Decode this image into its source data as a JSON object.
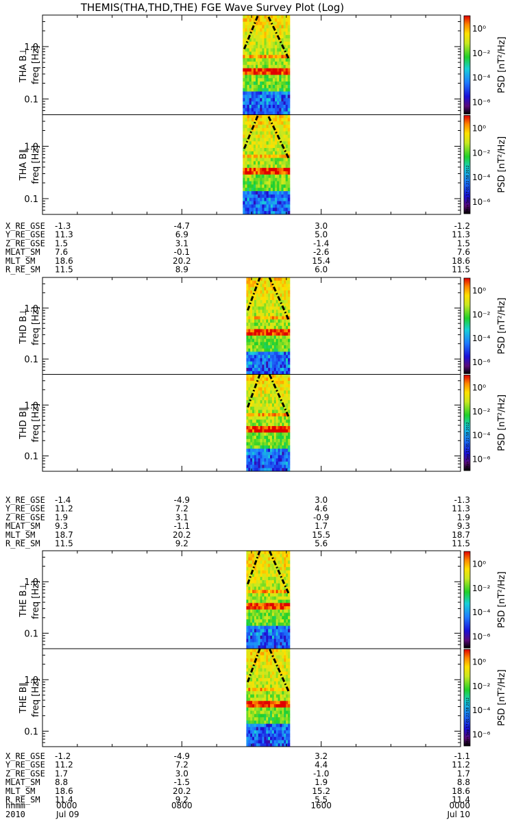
{
  "title": "THEMIS(THA,THD,THE) FGE Wave Survey Plot (Log)",
  "stamp": "Mon Sep 17 01:22:58 2012",
  "colorbar": {
    "label": "PSD [nT²/Hz]",
    "tick_labels": [
      "10⁰",
      "10⁻²",
      "10⁻⁴",
      "10⁻⁶"
    ]
  },
  "freq_axis_label": "freq [Hz]",
  "freq_tick_labels": [
    "1.0",
    "0.1"
  ],
  "time_axis": {
    "row_labels": [
      "hhmm",
      "2010"
    ],
    "ticks": [
      {
        "hhmm": "0000",
        "date": "Jul 09"
      },
      {
        "hhmm": "0800",
        "date": ""
      },
      {
        "hhmm": "1600",
        "date": ""
      },
      {
        "hhmm": "0000",
        "date": "Jul 10"
      }
    ]
  },
  "chart_data": [
    {
      "type": "heatmap",
      "probe": "THA",
      "panels": [
        "THA B⊥",
        "THA B∥"
      ],
      "x_range_hours": [
        0,
        24
      ],
      "data_interval_hours": [
        11.5,
        14.2
      ],
      "freq_range_hz": [
        0.05,
        4.0
      ],
      "color_range_psd": [
        1e-07,
        10
      ],
      "scale": "log",
      "ephemeris": {
        "rows": [
          "X_RE_GSE",
          "Y_RE_GSE",
          "Z_RE_GSE",
          "MLAT_SM",
          "MLT_SM",
          "R_RE_SM"
        ],
        "values": [
          [
            "-1.3",
            "-4.7",
            "3.0",
            "-1.2"
          ],
          [
            "11.3",
            "6.9",
            "5.0",
            "11.3"
          ],
          [
            "1.5",
            "3.1",
            "-1.4",
            "1.5"
          ],
          [
            "7.6",
            "-0.1",
            "-2.6",
            "7.6"
          ],
          [
            "18.6",
            "20.2",
            "15.4",
            "18.6"
          ],
          [
            "11.5",
            "8.9",
            "6.0",
            "11.5"
          ]
        ]
      }
    },
    {
      "type": "heatmap",
      "probe": "THD",
      "panels": [
        "THD B⊥",
        "THD B∥"
      ],
      "x_range_hours": [
        0,
        24
      ],
      "data_interval_hours": [
        11.7,
        14.2
      ],
      "freq_range_hz": [
        0.05,
        4.0
      ],
      "color_range_psd": [
        1e-07,
        10
      ],
      "scale": "log",
      "ephemeris": {
        "rows": [
          "X_RE_GSE",
          "Y_RE_GSE",
          "Z_RE_GSE",
          "MLAT_SM",
          "MLT_SM",
          "R_RE_SM"
        ],
        "values": [
          [
            "-1.4",
            "-4.9",
            "3.0",
            "-1.3"
          ],
          [
            "11.2",
            "7.2",
            "4.6",
            "11.3"
          ],
          [
            "1.9",
            "3.1",
            "-0.9",
            "1.9"
          ],
          [
            "9.3",
            "-1.1",
            "1.7",
            "9.3"
          ],
          [
            "18.7",
            "20.2",
            "15.5",
            "18.7"
          ],
          [
            "11.5",
            "9.2",
            "5.6",
            "11.5"
          ]
        ]
      }
    },
    {
      "type": "heatmap",
      "probe": "THE",
      "panels": [
        "THE B⊥",
        "THE B∥"
      ],
      "x_range_hours": [
        0,
        24
      ],
      "data_interval_hours": [
        11.7,
        14.2
      ],
      "freq_range_hz": [
        0.05,
        4.0
      ],
      "color_range_psd": [
        1e-07,
        10
      ],
      "scale": "log",
      "ephemeris": {
        "rows": [
          "X_RE_GSE",
          "Y_RE_GSE",
          "Z_RE_GSE",
          "MLAT_SM",
          "MLT_SM",
          "R_RE_SM"
        ],
        "values": [
          [
            "-1.2",
            "-4.9",
            "3.2",
            "-1.1"
          ],
          [
            "11.2",
            "7.2",
            "4.4",
            "11.2"
          ],
          [
            "1.7",
            "3.0",
            "-1.0",
            "1.7"
          ],
          [
            "8.8",
            "-1.5",
            "1.9",
            "8.8"
          ],
          [
            "18.6",
            "20.2",
            "15.2",
            "18.6"
          ],
          [
            "11.4",
            "9.2",
            "5.5",
            "11.4"
          ]
        ]
      }
    }
  ]
}
